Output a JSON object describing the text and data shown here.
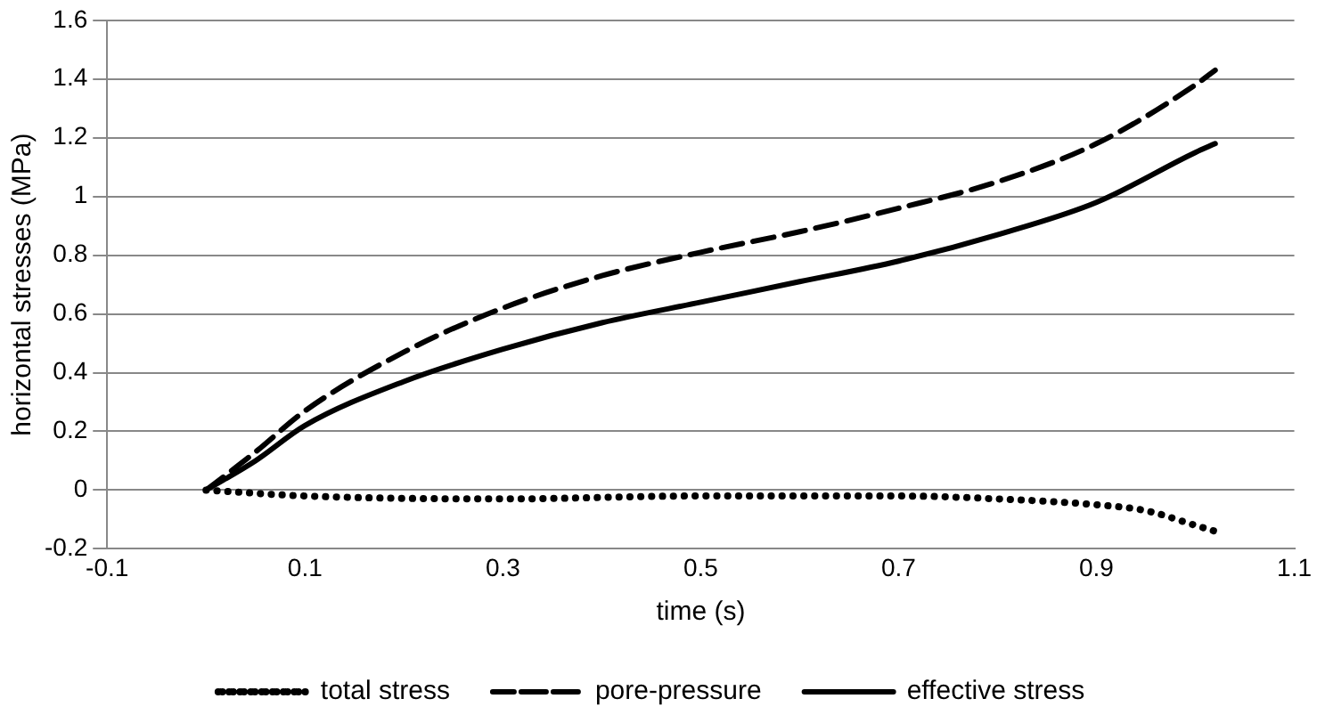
{
  "chart_data": {
    "type": "line",
    "xlabel": "time (s)",
    "ylabel": "horizontal stresses (MPa)",
    "xlim": [
      -0.1,
      1.1
    ],
    "xticks": [
      -0.1,
      0.1,
      0.3,
      0.5,
      0.7,
      0.9,
      1.1
    ],
    "ylim": [
      -0.2,
      1.6
    ],
    "yticks": [
      -0.2,
      0,
      0.2,
      0.4,
      0.6,
      0.8,
      1,
      1.2,
      1.4,
      1.6
    ],
    "grid": "y",
    "legend": "bottom",
    "marker": "none",
    "series": [
      {
        "name": "total stress",
        "color": "#000000",
        "line_style": "dotted",
        "x": [
          0,
          0.1,
          0.3,
          0.5,
          0.7,
          0.8,
          0.9,
          0.95,
          1.0,
          1.02
        ],
        "values": [
          0,
          -0.02,
          -0.03,
          -0.02,
          -0.02,
          -0.03,
          -0.05,
          -0.07,
          -0.12,
          -0.14
        ]
      },
      {
        "name": "pore-pressure",
        "color": "#000000",
        "line_style": "dashed",
        "x": [
          0,
          0.05,
          0.1,
          0.2,
          0.3,
          0.4,
          0.5,
          0.6,
          0.7,
          0.8,
          0.9,
          1.0,
          1.02
        ],
        "values": [
          0,
          0.13,
          0.27,
          0.47,
          0.62,
          0.73,
          0.81,
          0.88,
          0.96,
          1.05,
          1.18,
          1.38,
          1.43
        ]
      },
      {
        "name": "effective stress",
        "color": "#000000",
        "line_style": "solid",
        "x": [
          0,
          0.05,
          0.1,
          0.2,
          0.3,
          0.4,
          0.5,
          0.6,
          0.7,
          0.8,
          0.9,
          1.0,
          1.02
        ],
        "values": [
          0,
          0.1,
          0.22,
          0.37,
          0.48,
          0.57,
          0.64,
          0.71,
          0.78,
          0.87,
          0.98,
          1.15,
          1.18
        ]
      }
    ]
  }
}
